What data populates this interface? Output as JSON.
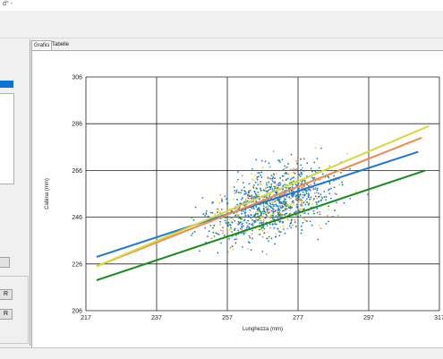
{
  "window": {
    "title_fragment": "d° -"
  },
  "tabs": [
    {
      "label": "Grafici",
      "active": true
    },
    {
      "label": "Tabelle",
      "active": false
    }
  ],
  "left_panel": {
    "buttons": [
      "R",
      "R"
    ]
  },
  "colors": {
    "blue": "#1f77d4",
    "orange": "#f08a52",
    "yellow": "#d8d83a",
    "green": "#1a8a1a",
    "grid": "#222222"
  },
  "chart_data": {
    "type": "scatter",
    "xlabel": "Lunghezza (mm)",
    "ylabel": "Cabina (mm)",
    "xlim": [
      217,
      317
    ],
    "ylim": [
      206,
      306
    ],
    "xticks": [
      "217",
      "237",
      "257",
      "277",
      "297",
      "317"
    ],
    "yticks": [
      "206",
      "226",
      "246",
      "266",
      "286",
      "306"
    ],
    "grid": true,
    "point_cloud": {
      "approx_count": 1200,
      "x_center": 270,
      "x_spread": 12,
      "y_center": 252,
      "y_spread": 13,
      "slope": 0.5
    },
    "series": [
      {
        "color_key": "blue",
        "line": [
          [
            220,
            229
          ],
          [
            311,
            274
          ]
        ]
      },
      {
        "color_key": "orange",
        "line": [
          [
            220,
            225
          ],
          [
            312,
            280
          ]
        ]
      },
      {
        "color_key": "yellow",
        "line": [
          [
            220,
            225
          ],
          [
            314,
            285
          ]
        ]
      },
      {
        "color_key": "green",
        "line": [
          [
            220,
            219
          ],
          [
            313,
            266
          ]
        ]
      }
    ]
  }
}
